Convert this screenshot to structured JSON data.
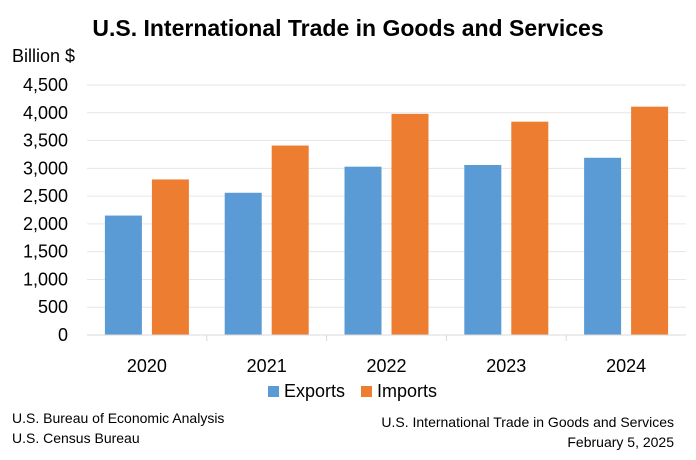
{
  "chart_data": {
    "type": "bar",
    "title": "U.S. International Trade in Goods and Services",
    "ylabel": "Billion $",
    "xlabel": "",
    "categories": [
      "2020",
      "2021",
      "2022",
      "2023",
      "2024"
    ],
    "series": [
      {
        "name": "Exports",
        "color": "#5B9BD5",
        "values": [
          2150,
          2560,
          3030,
          3060,
          3190
        ]
      },
      {
        "name": "Imports",
        "color": "#ED7D31",
        "values": [
          2800,
          3410,
          3980,
          3840,
          4110
        ]
      }
    ],
    "ylim": [
      0,
      4500
    ],
    "yticks": [
      0,
      500,
      1000,
      1500,
      2000,
      2500,
      3000,
      3500,
      4000,
      4500
    ],
    "ytick_labels": [
      "0",
      "500",
      "1,000",
      "1,500",
      "2,000",
      "2,500",
      "3,000",
      "3,500",
      "4,000",
      "4,500"
    ],
    "grid": true,
    "legend_position": "bottom"
  },
  "footer": {
    "left_line1": "U.S. Bureau of Economic Analysis",
    "left_line2": "U.S. Census Bureau",
    "right_line1": "U.S. International Trade in Goods and Services",
    "right_line2": "February 5, 2025"
  }
}
